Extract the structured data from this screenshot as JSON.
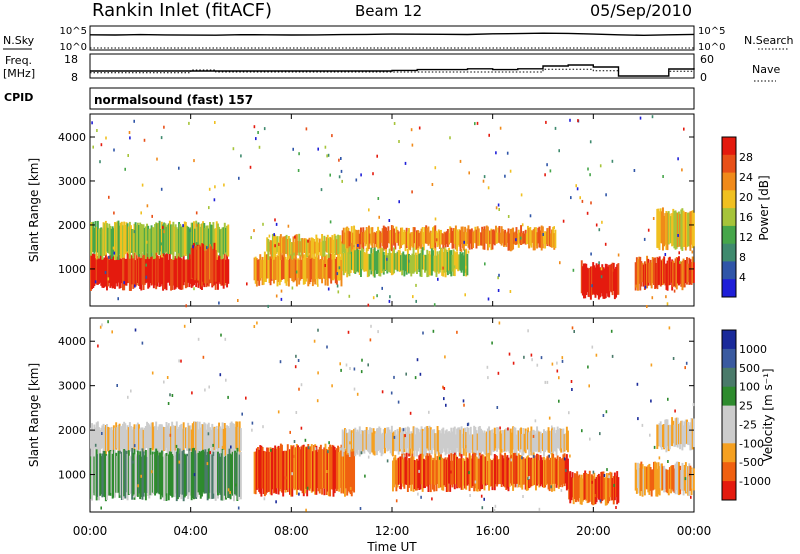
{
  "header": {
    "station": "Rankin Inlet (fitACF)",
    "beam": "Beam 12",
    "date": "05/Sep/2010"
  },
  "labels": {
    "nsky": "N.Sky",
    "freq_line1": "Freq.",
    "freq_line2": "[MHz]",
    "cpid": "CPID",
    "nsearch": "N.Search",
    "nave": "Nave",
    "cpid_value": "normalsound (fast) 157",
    "nsky_ticks": [
      "10^5",
      "10^0"
    ],
    "nsearch_ticks": [
      "10^5",
      "10^0"
    ],
    "freq_ticks": [
      "18",
      "8"
    ],
    "nave_ticks": [
      "60",
      "0"
    ]
  },
  "colors": {
    "power": [
      "#1f1fd8",
      "#2f55a8",
      "#3f8a6e",
      "#46a64a",
      "#a6c43a",
      "#f0c020",
      "#f08a1a",
      "#e85018",
      "#e41a0e"
    ],
    "velocity": [
      "#e41a0e",
      "#f06010",
      "#f5a020",
      "#cccccc",
      "#cccccc",
      "#2e8b2e",
      "#4a7a6a",
      "#3a5aa0",
      "#1a2a9a"
    ]
  },
  "chart_data": [
    {
      "type": "line",
      "title": "N.Sky / N.Search",
      "y_scale": "log",
      "ylim": [
        1,
        100000
      ],
      "x": [
        "00:00",
        "01:00",
        "02:00",
        "03:00",
        "04:00",
        "05:00",
        "06:00",
        "07:00",
        "08:00",
        "09:00",
        "10:00",
        "11:00",
        "12:00",
        "13:00",
        "14:00",
        "15:00",
        "16:00",
        "17:00",
        "18:00",
        "19:00",
        "20:00",
        "21:00",
        "22:00",
        "23:00",
        "24:00"
      ],
      "series": [
        {
          "name": "N.Sky",
          "values": [
            2000,
            1800,
            2200,
            1900,
            1700,
            1600,
            2100,
            2000,
            1800,
            1900,
            2200,
            2500,
            3000,
            2800,
            2600,
            2400,
            3500,
            4000,
            5000,
            4500,
            3000,
            2000,
            1500,
            2000,
            2500
          ]
        },
        {
          "name": "N.Search",
          "values": [
            1,
            1,
            1,
            1,
            1,
            1,
            1,
            1,
            1,
            1,
            1,
            1,
            1,
            1,
            1,
            1,
            1,
            1,
            1,
            1,
            1,
            1,
            1,
            1,
            1
          ]
        }
      ]
    },
    {
      "type": "line",
      "title": "Freq. / Nave",
      "ylim": [
        8,
        18
      ],
      "x": [
        "00:00",
        "01:00",
        "02:00",
        "03:00",
        "04:00",
        "05:00",
        "06:00",
        "07:00",
        "08:00",
        "09:00",
        "10:00",
        "11:00",
        "12:00",
        "13:00",
        "14:00",
        "15:00",
        "16:00",
        "17:00",
        "18:00",
        "19:00",
        "20:00",
        "21:00",
        "22:00",
        "23:00",
        "24:00"
      ],
      "series": [
        {
          "name": "Freq",
          "values": [
            10.5,
            10.5,
            10.5,
            10.5,
            10.5,
            10.5,
            10.5,
            10.5,
            10.5,
            10.5,
            10.5,
            10.5,
            10.8,
            11.2,
            11.2,
            11.6,
            11.2,
            11.6,
            13.0,
            13.5,
            12.5,
            8.0,
            8.0,
            11.5,
            12.0
          ]
        },
        {
          "name": "Nave",
          "values": [
            10,
            10,
            10,
            10,
            18,
            12,
            12,
            12,
            12,
            12,
            12,
            12,
            12,
            12,
            12,
            12,
            12,
            12,
            20,
            20,
            16,
            0,
            0,
            14,
            18
          ]
        }
      ]
    },
    {
      "type": "heatmap",
      "panel": "power",
      "ylabel": "Slant Range [km]",
      "colorbar_label": "Power [dB]",
      "colorbar_ticks": [
        "28",
        "24",
        "20",
        "16",
        "12",
        "8",
        "4"
      ],
      "ylim": [
        180,
        4500
      ],
      "yticks": [
        "4000",
        "3000",
        "2000",
        "1000"
      ],
      "x_range_hours": [
        0,
        24
      ],
      "gap_hours": [
        [
          21.0,
          21.6
        ]
      ],
      "bands": [
        {
          "t0": 0.0,
          "t1": 5.5,
          "r0": 600,
          "r1": 1300,
          "level": 8
        },
        {
          "t0": 0.0,
          "t1": 5.5,
          "r0": 1300,
          "r1": 2000,
          "level": 4
        },
        {
          "t0": 4.0,
          "t1": 5.0,
          "r0": 700,
          "r1": 1500,
          "level": 7
        },
        {
          "t0": 6.5,
          "t1": 10.0,
          "r0": 700,
          "r1": 1300,
          "level": 6
        },
        {
          "t0": 7.0,
          "t1": 10.5,
          "r0": 1300,
          "r1": 1700,
          "level": 5
        },
        {
          "t0": 10.0,
          "t1": 18.5,
          "r0": 1500,
          "r1": 1900,
          "level": 6
        },
        {
          "t0": 10.0,
          "t1": 15.0,
          "r0": 900,
          "r1": 1400,
          "level": 4
        },
        {
          "t0": 19.5,
          "t1": 21.0,
          "r0": 400,
          "r1": 1100,
          "level": 8
        },
        {
          "t0": 21.6,
          "t1": 24.0,
          "r0": 600,
          "r1": 1200,
          "level": 7
        },
        {
          "t0": 22.5,
          "t1": 24.0,
          "r0": 1500,
          "r1": 2300,
          "level": 5
        }
      ]
    },
    {
      "type": "heatmap",
      "panel": "velocity",
      "ylabel": "Slant Range [km]",
      "xlabel": "Time UT",
      "colorbar_label": "Velocity [m s⁻¹]",
      "colorbar_ticks": [
        "1000",
        "500",
        "100",
        "25",
        "-25",
        "-100",
        "-500",
        "-1000"
      ],
      "ylim": [
        180,
        4500
      ],
      "yticks": [
        "4000",
        "3000",
        "2000",
        "1000"
      ],
      "xticks": [
        "00:00",
        "04:00",
        "08:00",
        "12:00",
        "16:00",
        "20:00",
        "00:00"
      ],
      "x_range_hours": [
        0,
        24
      ],
      "gap_hours": [
        [
          21.0,
          21.6
        ]
      ],
      "bands": [
        {
          "t0": 0.0,
          "t1": 6.0,
          "r0": 1500,
          "r1": 2100,
          "level": 3
        },
        {
          "t0": 0.0,
          "t1": 6.0,
          "r0": 500,
          "r1": 1500,
          "level": 5
        },
        {
          "t0": 6.5,
          "t1": 10.5,
          "r0": 600,
          "r1": 1600,
          "level": 1
        },
        {
          "t0": 10.0,
          "t1": 19.0,
          "r0": 1500,
          "r1": 2000,
          "level": 3
        },
        {
          "t0": 12.0,
          "t1": 19.0,
          "r0": 700,
          "r1": 1400,
          "level": 1
        },
        {
          "t0": 19.0,
          "t1": 21.0,
          "r0": 400,
          "r1": 1000,
          "level": 1
        },
        {
          "t0": 21.6,
          "t1": 24.0,
          "r0": 600,
          "r1": 1200,
          "level": 2
        },
        {
          "t0": 22.5,
          "t1": 24.0,
          "r0": 1600,
          "r1": 2200,
          "level": 3
        }
      ]
    }
  ]
}
